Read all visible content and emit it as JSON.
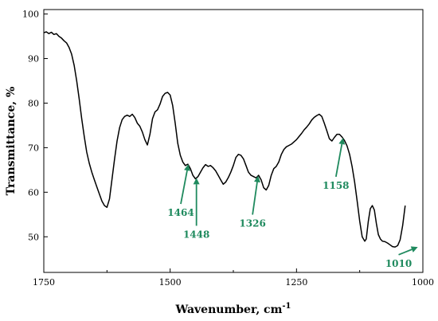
{
  "chart_data": {
    "type": "line",
    "xlabel": "Wavenumber, cm",
    "xlabel_superscript": "-1",
    "ylabel": "Transmittance, %",
    "xlim": [
      1750,
      1000
    ],
    "ylim": [
      42,
      101
    ],
    "x_reversed": true,
    "grid": false,
    "x_ticks": [
      1750,
      1500,
      1250,
      1000
    ],
    "y_ticks": [
      50,
      60,
      70,
      80,
      90,
      100
    ],
    "line_color": "#000000",
    "annotation_color": "#1f8a5e",
    "series": [
      {
        "points": [
          [
            1750,
            95.8
          ],
          [
            1745,
            96.0
          ],
          [
            1740,
            95.6
          ],
          [
            1735,
            95.9
          ],
          [
            1730,
            95.4
          ],
          [
            1725,
            95.6
          ],
          [
            1720,
            95.0
          ],
          [
            1715,
            94.6
          ],
          [
            1710,
            94.0
          ],
          [
            1705,
            93.5
          ],
          [
            1700,
            92.5
          ],
          [
            1695,
            91.0
          ],
          [
            1690,
            88.5
          ],
          [
            1685,
            85.0
          ],
          [
            1680,
            81.0
          ],
          [
            1675,
            76.5
          ],
          [
            1670,
            72.5
          ],
          [
            1665,
            69.0
          ],
          [
            1660,
            66.5
          ],
          [
            1655,
            64.5
          ],
          [
            1650,
            62.8
          ],
          [
            1645,
            61.2
          ],
          [
            1640,
            59.6
          ],
          [
            1635,
            58.0
          ],
          [
            1630,
            57.0
          ],
          [
            1625,
            56.6
          ],
          [
            1620,
            58.5
          ],
          [
            1615,
            63.0
          ],
          [
            1610,
            67.5
          ],
          [
            1605,
            71.5
          ],
          [
            1600,
            74.5
          ],
          [
            1595,
            76.3
          ],
          [
            1590,
            77.0
          ],
          [
            1585,
            77.3
          ],
          [
            1580,
            77.0
          ],
          [
            1575,
            77.5
          ],
          [
            1570,
            76.8
          ],
          [
            1565,
            75.5
          ],
          [
            1560,
            74.8
          ],
          [
            1555,
            73.5
          ],
          [
            1550,
            71.8
          ],
          [
            1545,
            70.6
          ],
          [
            1540,
            73.0
          ],
          [
            1535,
            76.5
          ],
          [
            1530,
            78.0
          ],
          [
            1525,
            78.5
          ],
          [
            1520,
            79.8
          ],
          [
            1515,
            81.5
          ],
          [
            1510,
            82.2
          ],
          [
            1505,
            82.4
          ],
          [
            1500,
            81.8
          ],
          [
            1495,
            79.5
          ],
          [
            1490,
            75.5
          ],
          [
            1485,
            71.0
          ],
          [
            1480,
            68.3
          ],
          [
            1475,
            66.8
          ],
          [
            1470,
            66.0
          ],
          [
            1465,
            66.3
          ],
          [
            1460,
            65.3
          ],
          [
            1455,
            63.8
          ],
          [
            1450,
            63.0
          ],
          [
            1445,
            63.5
          ],
          [
            1440,
            64.5
          ],
          [
            1435,
            65.5
          ],
          [
            1430,
            66.2
          ],
          [
            1425,
            65.8
          ],
          [
            1420,
            66.0
          ],
          [
            1415,
            65.5
          ],
          [
            1410,
            64.8
          ],
          [
            1405,
            63.8
          ],
          [
            1400,
            62.8
          ],
          [
            1395,
            61.8
          ],
          [
            1390,
            62.3
          ],
          [
            1385,
            63.3
          ],
          [
            1380,
            64.5
          ],
          [
            1375,
            66.0
          ],
          [
            1370,
            67.8
          ],
          [
            1365,
            68.5
          ],
          [
            1360,
            68.3
          ],
          [
            1355,
            67.5
          ],
          [
            1350,
            66.0
          ],
          [
            1345,
            64.5
          ],
          [
            1340,
            63.8
          ],
          [
            1335,
            63.5
          ],
          [
            1330,
            63.2
          ],
          [
            1325,
            63.8
          ],
          [
            1320,
            62.8
          ],
          [
            1315,
            61.0
          ],
          [
            1310,
            60.5
          ],
          [
            1305,
            61.5
          ],
          [
            1300,
            63.8
          ],
          [
            1295,
            65.3
          ],
          [
            1290,
            65.8
          ],
          [
            1285,
            66.8
          ],
          [
            1280,
            68.5
          ],
          [
            1275,
            69.6
          ],
          [
            1270,
            70.2
          ],
          [
            1265,
            70.5
          ],
          [
            1260,
            70.8
          ],
          [
            1255,
            71.3
          ],
          [
            1250,
            71.8
          ],
          [
            1245,
            72.5
          ],
          [
            1240,
            73.2
          ],
          [
            1235,
            74.0
          ],
          [
            1230,
            74.6
          ],
          [
            1225,
            75.3
          ],
          [
            1220,
            76.2
          ],
          [
            1215,
            76.8
          ],
          [
            1210,
            77.2
          ],
          [
            1205,
            77.5
          ],
          [
            1200,
            77.0
          ],
          [
            1195,
            75.5
          ],
          [
            1190,
            73.8
          ],
          [
            1185,
            72.0
          ],
          [
            1180,
            71.5
          ],
          [
            1175,
            72.3
          ],
          [
            1170,
            73.0
          ],
          [
            1165,
            73.0
          ],
          [
            1160,
            72.4
          ],
          [
            1155,
            71.6
          ],
          [
            1150,
            70.4
          ],
          [
            1145,
            68.5
          ],
          [
            1140,
            65.8
          ],
          [
            1135,
            62.3
          ],
          [
            1130,
            58.0
          ],
          [
            1125,
            53.5
          ],
          [
            1120,
            50.0
          ],
          [
            1115,
            49.0
          ],
          [
            1112,
            49.5
          ],
          [
            1108,
            53.5
          ],
          [
            1104,
            56.3
          ],
          [
            1100,
            57.0
          ],
          [
            1096,
            56.0
          ],
          [
            1092,
            53.0
          ],
          [
            1088,
            50.5
          ],
          [
            1084,
            49.5
          ],
          [
            1080,
            49.0
          ],
          [
            1075,
            48.9
          ],
          [
            1070,
            48.6
          ],
          [
            1065,
            48.2
          ],
          [
            1060,
            47.8
          ],
          [
            1055,
            47.7
          ],
          [
            1050,
            48.0
          ],
          [
            1045,
            49.3
          ],
          [
            1040,
            52.5
          ],
          [
            1035,
            57.0
          ]
        ]
      }
    ],
    "annotations": [
      {
        "label": "1464",
        "point": [
          1464,
          66.3
        ],
        "text_anchor": [
          1479,
          55.4
        ]
      },
      {
        "label": "1448",
        "point": [
          1448,
          63.2
        ],
        "text_anchor": [
          1448,
          50.5
        ]
      },
      {
        "label": "1326",
        "point": [
          1326,
          63.7
        ],
        "text_anchor": [
          1337,
          53.0
        ]
      },
      {
        "label": "1158",
        "point": [
          1158,
          72.2
        ],
        "text_anchor": [
          1172,
          61.5
        ]
      },
      {
        "label": "1010",
        "point": [
          1010,
          47.7
        ],
        "text_anchor": [
          1048,
          44.0
        ]
      }
    ]
  }
}
